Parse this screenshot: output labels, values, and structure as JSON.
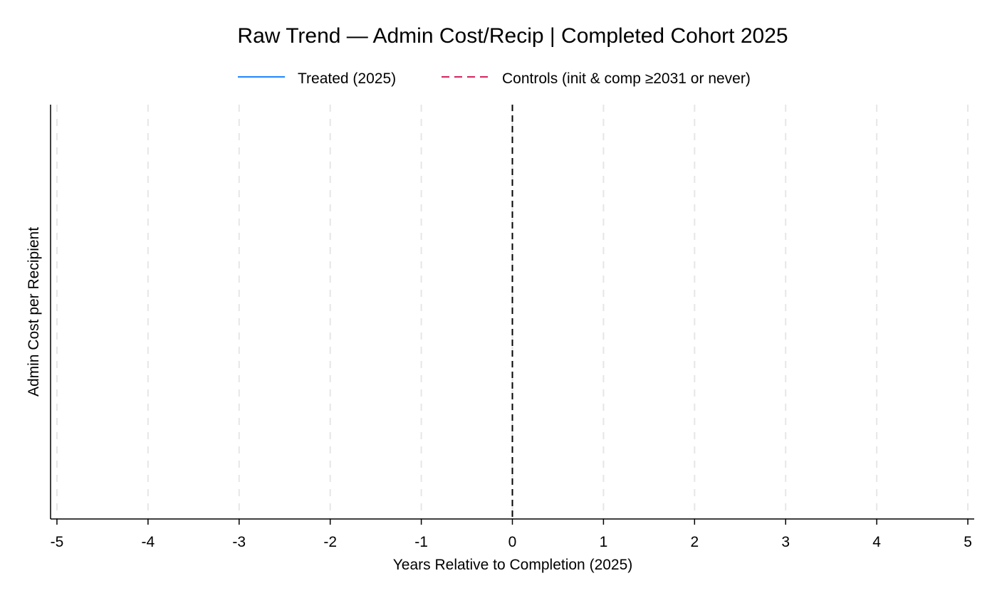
{
  "chart_data": {
    "type": "line",
    "title": "Raw Trend — Admin Cost/Recip | Completed Cohort 2025",
    "xlabel": "Years Relative to Completion (2025)",
    "ylabel": "Admin Cost per Recipient",
    "x_ticks": [
      -5,
      -4,
      -3,
      -2,
      -1,
      0,
      1,
      2,
      3,
      4,
      5
    ],
    "xlim": [
      -5.07,
      5.07
    ],
    "reference_line_x": 0,
    "grid": "vertical dashed",
    "legend_position": "top-center",
    "series": [
      {
        "name": "Treated (2025)",
        "color": "#1f86ff",
        "line_style": "solid",
        "x": [],
        "y": []
      },
      {
        "name": "Controls (init & comp ≥2031 or never)",
        "color": "#d6245c",
        "line_style": "dashed",
        "x": [],
        "y": []
      }
    ]
  }
}
